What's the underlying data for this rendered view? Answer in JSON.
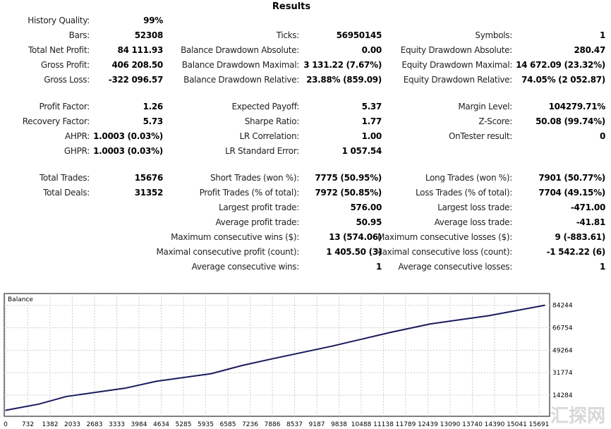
{
  "title": "Results",
  "rows": [
    {
      "top": 31,
      "cells": [
        [
          "History Quality:",
          "99%"
        ],
        null,
        null
      ]
    },
    {
      "top": 52,
      "cells": [
        [
          "Bars:",
          "52308"
        ],
        [
          "Ticks:",
          "56950145"
        ],
        [
          "Symbols:",
          "1"
        ]
      ]
    },
    {
      "top": 73,
      "cells": [
        [
          "Total Net Profit:",
          "84 111.93"
        ],
        [
          "Balance Drawdown Absolute:",
          "0.00"
        ],
        [
          "Equity Drawdown Absolute:",
          "280.47"
        ]
      ]
    },
    {
      "top": 94,
      "cells": [
        [
          "Gross Profit:",
          "406 208.50"
        ],
        [
          "Balance Drawdown Maximal:",
          "3 131.22 (7.67%)"
        ],
        [
          "Equity Drawdown Maximal:",
          "14 672.09 (23.32%)"
        ]
      ]
    },
    {
      "top": 115,
      "cells": [
        [
          "Gross Loss:",
          "-322 096.57"
        ],
        [
          "Balance Drawdown Relative:",
          "23.88% (859.09)"
        ],
        [
          "Equity Drawdown Relative:",
          "74.05% (2 052.87)"
        ]
      ]
    },
    {
      "top": 153,
      "cells": [
        [
          "Profit Factor:",
          "1.26"
        ],
        [
          "Expected Payoff:",
          "5.37"
        ],
        [
          "Margin Level:",
          "104279.71%"
        ]
      ]
    },
    {
      "top": 174,
      "cells": [
        [
          "Recovery Factor:",
          "5.73"
        ],
        [
          "Sharpe Ratio:",
          "1.77"
        ],
        [
          "Z-Score:",
          "50.08 (99.74%)"
        ]
      ]
    },
    {
      "top": 195,
      "cells": [
        [
          "AHPR:",
          "1.0003 (0.03%)"
        ],
        [
          "LR Correlation:",
          "1.00"
        ],
        [
          "OnTester result:",
          "0"
        ]
      ]
    },
    {
      "top": 216,
      "cells": [
        [
          "GHPR:",
          "1.0003 (0.03%)"
        ],
        [
          "LR Standard Error:",
          "1 057.54"
        ],
        null
      ]
    },
    {
      "top": 254,
      "cells": [
        [
          "Total Trades:",
          "15676"
        ],
        [
          "Short Trades (won %):",
          "7775 (50.95%)"
        ],
        [
          "Long Trades (won %):",
          "7901 (50.77%)"
        ]
      ]
    },
    {
      "top": 275,
      "cells": [
        [
          "Total Deals:",
          "31352"
        ],
        [
          "Profit Trades (% of total):",
          "7972 (50.85%)"
        ],
        [
          "Loss Trades (% of total):",
          "7704 (49.15%)"
        ]
      ]
    },
    {
      "top": 296,
      "cells": [
        null,
        [
          "Largest profit trade:",
          "576.00"
        ],
        [
          "Largest loss trade:",
          "-471.00"
        ]
      ]
    },
    {
      "top": 317,
      "cells": [
        null,
        [
          "Average profit trade:",
          "50.95"
        ],
        [
          "Average loss trade:",
          "-41.81"
        ]
      ]
    },
    {
      "top": 338,
      "cells": [
        null,
        [
          "Maximum consecutive wins ($):",
          "13 (574.06)"
        ],
        [
          "Maximum consecutive losses ($):",
          "9 (-883.61)"
        ]
      ]
    },
    {
      "top": 359,
      "cells": [
        null,
        [
          "Maximal consecutive profit (count):",
          "1 405.50 (3)"
        ],
        [
          "Maximal consecutive loss (count):",
          "-1 542.22 (6)"
        ]
      ]
    },
    {
      "top": 380,
      "cells": [
        null,
        [
          "Average consecutive wins:",
          "1"
        ],
        [
          "Average consecutive losses:",
          "1"
        ]
      ]
    }
  ],
  "watermark": "汇探网",
  "chart_data": {
    "type": "line",
    "title": "Balance",
    "series": [
      {
        "name": "Balance",
        "color": "#1a1a5e",
        "x": [
          0,
          981,
          1789,
          3520,
          4443,
          6059,
          6982,
          7905,
          9636,
          11367,
          12521,
          14252,
          15900
        ],
        "y": [
          2468,
          7310,
          13228,
          19684,
          25064,
          30982,
          37438,
          42818,
          52502,
          63262,
          69718,
          76174,
          84244
        ]
      }
    ],
    "xticks": [
      "0",
      "732",
      "1382",
      "2033",
      "2683",
      "3333",
      "3984",
      "4634",
      "5285",
      "5935",
      "6585",
      "7236",
      "7886",
      "8537",
      "9187",
      "9838",
      "10488",
      "11138",
      "11789",
      "12439",
      "13090",
      "13740",
      "14390",
      "15041",
      "15691"
    ],
    "yticks": [
      "84244",
      "66754",
      "49264",
      "31774",
      "14284"
    ],
    "xlim": [
      0,
      16000
    ],
    "ylim": [
      -2200,
      93400
    ],
    "grid": true
  }
}
